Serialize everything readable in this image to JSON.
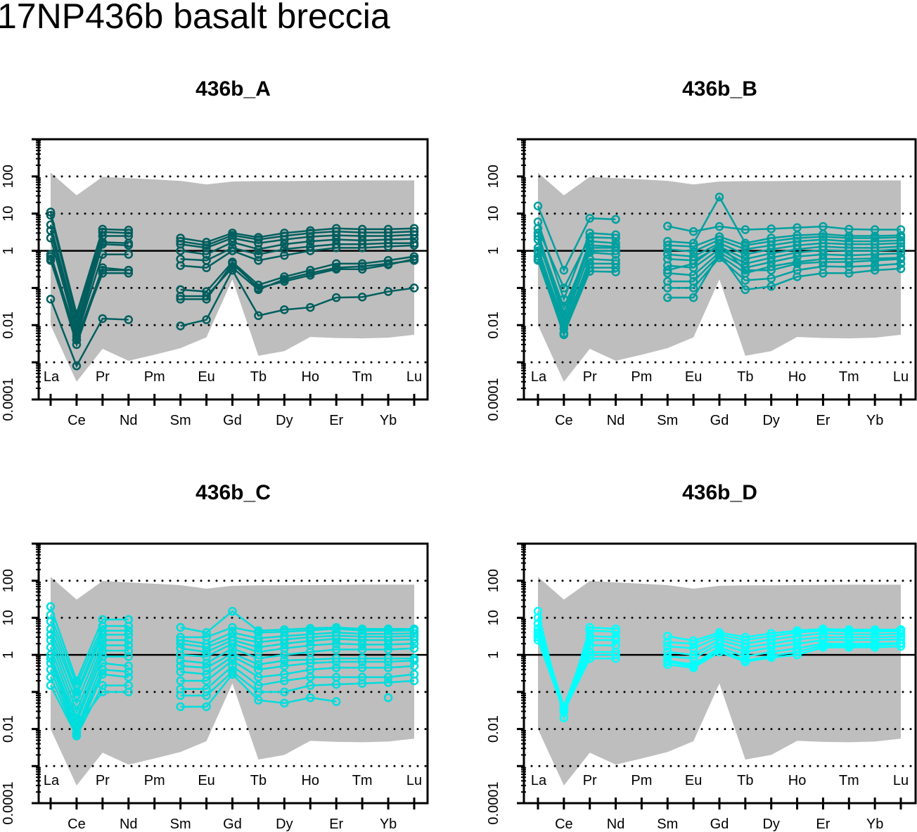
{
  "title": "17NP436b basalt breccia",
  "chart_data": [
    {
      "type": "line",
      "title": "436b_A",
      "color": "#005E5E",
      "categories": [
        "La",
        "Ce",
        "Pr",
        "Nd",
        "Pm",
        "Sm",
        "Eu",
        "Gd",
        "Tb",
        "Dy",
        "Ho",
        "Er",
        "Tm",
        "Yb",
        "Lu"
      ],
      "y_scale": "log",
      "ylim": [
        0.0001,
        1000
      ],
      "y_tick_labels": [
        "100",
        "10",
        "1",
        "0.01",
        "0.0001"
      ],
      "dotted_gridlines": [
        100,
        10,
        0.1,
        0.01,
        0.001
      ],
      "reference_line": 1,
      "envelope": {
        "color": "#BEBEBE",
        "upper": [
          127,
          31,
          98,
          90,
          83,
          76,
          61,
          73,
          75,
          75,
          76,
          77,
          78,
          78,
          78
        ],
        "lower": [
          0.01,
          0.0003,
          0.0023,
          0.0011,
          0.0016,
          0.0024,
          0.0047,
          0.17,
          0.0015,
          0.002,
          0.0048,
          0.0045,
          0.0044,
          0.0046,
          0.0055
        ]
      },
      "series": [
        {
          "values": [
            11,
            0.02,
            3.8,
            3.6,
            null,
            2.2,
            1.7,
            3.0,
            2.3,
            3.0,
            3.5,
            4.0,
            3.8,
            3.8,
            4.0
          ]
        },
        {
          "values": [
            9,
            0.015,
            3.2,
            3.0,
            null,
            1.8,
            1.4,
            2.6,
            2.0,
            2.5,
            3.0,
            3.3,
            3.1,
            3.1,
            3.3
          ]
        },
        {
          "values": [
            5,
            0.01,
            2.5,
            2.5,
            null,
            1.5,
            1.2,
            2.2,
            1.6,
            2.0,
            2.4,
            2.6,
            2.5,
            2.5,
            2.7
          ]
        },
        {
          "values": [
            3.5,
            0.008,
            1.7,
            1.6,
            null,
            1.0,
            0.8,
            1.7,
            1.1,
            1.5,
            1.8,
            2.0,
            1.9,
            2.0,
            2.1
          ]
        },
        {
          "values": [
            2.2,
            0.006,
            1.5,
            1.4,
            null,
            0.6,
            0.55,
            1.2,
            0.8,
            1.1,
            1.3,
            1.5,
            1.5,
            1.6,
            1.6
          ]
        },
        {
          "values": [
            0.8,
            0.005,
            0.8,
            0.8,
            null,
            0.4,
            0.35,
            1.0,
            0.55,
            0.75,
            1.0,
            1.2,
            1.2,
            1.3,
            1.4
          ]
        },
        {
          "values": [
            0.6,
            0.004,
            0.35,
            0.3,
            null,
            0.09,
            0.08,
            0.5,
            0.12,
            0.2,
            0.3,
            0.45,
            0.45,
            0.55,
            0.7
          ]
        },
        {
          "values": [
            0.55,
            0.004,
            0.25,
            0.25,
            null,
            0.06,
            0.06,
            0.35,
            0.09,
            0.17,
            0.25,
            0.35,
            0.38,
            0.45,
            0.55
          ]
        },
        {
          "values": [
            0.7,
            0.003,
            0.3,
            0.3,
            null,
            0.05,
            0.05,
            0.45,
            0.1,
            0.15,
            0.22,
            0.32,
            0.32,
            0.42,
            0.6
          ]
        },
        {
          "values": [
            0.05,
            0.0008,
            0.015,
            0.014,
            null,
            0.0095,
            0.014,
            0.3,
            0.018,
            0.026,
            0.03,
            0.055,
            0.057,
            0.08,
            0.1
          ]
        }
      ]
    },
    {
      "type": "line",
      "title": "436b_B",
      "color": "#00A0A0",
      "categories": [
        "La",
        "Ce",
        "Pr",
        "Nd",
        "Pm",
        "Sm",
        "Eu",
        "Gd",
        "Tb",
        "Dy",
        "Ho",
        "Er",
        "Tm",
        "Yb",
        "Lu"
      ],
      "y_scale": "log",
      "ylim": [
        0.0001,
        1000
      ],
      "y_tick_labels": [
        "100",
        "10",
        "1",
        "0.01",
        "0.0001"
      ],
      "dotted_gridlines": [
        100,
        10,
        0.1,
        0.01,
        0.001
      ],
      "reference_line": 1,
      "envelope": {
        "color": "#BEBEBE",
        "upper": [
          127,
          31,
          98,
          90,
          83,
          76,
          61,
          73,
          75,
          75,
          76,
          77,
          78,
          78,
          78
        ],
        "lower": [
          0.01,
          0.0003,
          0.0023,
          0.0011,
          0.0016,
          0.0024,
          0.0047,
          0.17,
          0.0015,
          0.002,
          0.0048,
          0.0045,
          0.0044,
          0.0046,
          0.0055
        ]
      },
      "series": [
        {
          "values": [
            16,
            0.3,
            7.5,
            7,
            null,
            4.6,
            3.3,
            4.5,
            3.7,
            3.9,
            4.2,
            4.5,
            3.8,
            3.7,
            3.7
          ]
        },
        {
          "values": [
            6,
            0.05,
            3,
            2.7,
            null,
            1.8,
            1.6,
            28,
            1.6,
            2.2,
            2.6,
            2.8,
            2.5,
            2.5,
            2.6
          ]
        },
        {
          "values": [
            4,
            0.1,
            2.3,
            2.2,
            null,
            1.4,
            1.3,
            2.4,
            1.4,
            1.8,
            2.2,
            2.4,
            2.2,
            2.2,
            2.3
          ]
        },
        {
          "values": [
            3,
            0.02,
            1.8,
            1.6,
            null,
            1.1,
            0.95,
            2.0,
            1.1,
            1.4,
            1.8,
            2.0,
            1.8,
            1.8,
            1.9
          ]
        },
        {
          "values": [
            2,
            0.015,
            1.4,
            1.3,
            null,
            0.8,
            0.7,
            1.6,
            0.8,
            1.1,
            1.4,
            1.6,
            1.5,
            1.5,
            1.6
          ]
        },
        {
          "values": [
            1.2,
            0.01,
            1.0,
            1.0,
            null,
            0.6,
            0.55,
            1.3,
            0.6,
            0.85,
            1.1,
            1.3,
            1.2,
            1.2,
            1.3
          ]
        },
        {
          "values": [
            0.9,
            0.008,
            0.6,
            0.55,
            null,
            0.4,
            0.35,
            1.1,
            0.45,
            0.65,
            0.9,
            1.05,
            1.0,
            1.0,
            1.1
          ]
        },
        {
          "values": [
            0.7,
            0.006,
            0.45,
            0.45,
            null,
            0.25,
            0.22,
            0.9,
            0.35,
            0.5,
            0.7,
            0.8,
            0.75,
            0.8,
            0.85
          ]
        },
        {
          "values": [
            0.6,
            0.0055,
            0.35,
            0.35,
            null,
            0.15,
            0.15,
            0.75,
            0.25,
            0.38,
            0.5,
            0.6,
            0.6,
            0.62,
            0.65
          ]
        },
        {
          "values": [
            0.55,
            0.006,
            0.28,
            0.27,
            null,
            0.1,
            0.1,
            0.65,
            0.16,
            0.18,
            0.3,
            0.38,
            0.37,
            0.4,
            0.45
          ]
        },
        {
          "values": [
            1.0,
            0.012,
            0.9,
            0.8,
            null,
            0.055,
            0.055,
            0.85,
            0.09,
            0.11,
            0.2,
            0.25,
            0.25,
            0.3,
            0.33
          ]
        },
        {
          "values": [
            2.5,
            0.03,
            1.2,
            1.2,
            null,
            0.3,
            0.45,
            1.5,
            0.3,
            0.3,
            0.45,
            0.5,
            0.5,
            0.55,
            0.6
          ]
        }
      ]
    },
    {
      "type": "line",
      "title": "436b_C",
      "color": "#00DDDD",
      "categories": [
        "La",
        "Ce",
        "Pr",
        "Nd",
        "Pm",
        "Sm",
        "Eu",
        "Gd",
        "Tb",
        "Dy",
        "Ho",
        "Er",
        "Tm",
        "Yb",
        "Lu"
      ],
      "y_scale": "log",
      "ylim": [
        0.0001,
        1000
      ],
      "y_tick_labels": [
        "100",
        "10",
        "1",
        "0.01",
        "0.0001"
      ],
      "dotted_gridlines": [
        100,
        10,
        0.1,
        0.01,
        0.001
      ],
      "reference_line": 1,
      "envelope": {
        "color": "#BEBEBE",
        "upper": [
          127,
          31,
          98,
          90,
          83,
          76,
          61,
          73,
          75,
          75,
          76,
          77,
          78,
          78,
          78
        ],
        "lower": [
          0.01,
          0.0003,
          0.0023,
          0.0011,
          0.0016,
          0.0024,
          0.0047,
          0.17,
          0.0015,
          0.002,
          0.0048,
          0.0045,
          0.0044,
          0.0046,
          0.0055
        ]
      },
      "series": [
        {
          "values": [
            20,
            0.2,
            9,
            9,
            null,
            5.5,
            4,
            15,
            4.5,
            4.8,
            5.2,
            5.5,
            5,
            5,
            5
          ]
        },
        {
          "values": [
            12,
            0.15,
            6,
            6,
            null,
            3,
            3,
            5.5,
            4,
            4.2,
            4.6,
            5,
            4.5,
            4.5,
            4.5
          ]
        },
        {
          "values": [
            8,
            0.1,
            4.5,
            4.5,
            null,
            2.5,
            2,
            4,
            2.8,
            3.2,
            3.6,
            4,
            3.7,
            3.7,
            3.8
          ]
        },
        {
          "values": [
            5,
            0.08,
            3.5,
            3.5,
            null,
            2,
            1.6,
            3,
            2.2,
            2.6,
            3,
            3.3,
            3.1,
            3.1,
            3.2
          ]
        },
        {
          "values": [
            3.5,
            0.05,
            2.5,
            2.5,
            null,
            1.5,
            1.2,
            2.5,
            1.6,
            2,
            2.4,
            2.7,
            2.5,
            2.5,
            2.6
          ]
        },
        {
          "values": [
            2.5,
            0.03,
            1.8,
            1.8,
            null,
            1,
            0.9,
            2,
            1.2,
            1.5,
            1.8,
            2,
            1.9,
            1.9,
            2
          ]
        },
        {
          "values": [
            1.6,
            0.02,
            1.3,
            1.3,
            null,
            0.7,
            0.6,
            1.5,
            0.8,
            1,
            1.2,
            1.4,
            1.4,
            1.4,
            1.5
          ]
        },
        {
          "values": [
            1,
            0.015,
            0.9,
            0.9,
            null,
            0.5,
            0.45,
            1.1,
            0.55,
            0.7,
            0.75,
            0.8,
            0.8,
            0.8,
            0.8
          ]
        },
        {
          "values": [
            0.6,
            0.01,
            0.6,
            0.5,
            null,
            0.35,
            0.3,
            0.9,
            0.4,
            0.5,
            0.6,
            0.65,
            0.65,
            0.65,
            0.7
          ]
        },
        {
          "values": [
            0.4,
            0.008,
            0.4,
            0.35,
            null,
            0.2,
            0.2,
            0.7,
            0.25,
            0.3,
            0.4,
            0.45,
            0.45,
            0.45,
            0.5
          ]
        },
        {
          "values": [
            0.25,
            0.007,
            0.3,
            0.25,
            null,
            0.12,
            0.12,
            0.5,
            0.15,
            0.2,
            0.25,
            0.25,
            0.25,
            0.25,
            0.3
          ]
        },
        {
          "values": [
            0.15,
            0.0065,
            0.15,
            0.15,
            null,
            0.08,
            0.08,
            0.35,
            0.1,
            0.1,
            0.15,
            0.16,
            0.17,
            0.18,
            0.2
          ]
        },
        {
          "values": [
            0.8,
            0.012,
            0.1,
            0.1,
            null,
            0.04,
            0.04,
            0.3,
            0.06,
            0.05,
            0.07,
            0.055,
            null,
            null,
            null
          ]
        },
        {
          "values": [
            null,
            null,
            null,
            null,
            null,
            null,
            null,
            null,
            null,
            null,
            null,
            null,
            null,
            0.07,
            null
          ]
        }
      ]
    },
    {
      "type": "line",
      "title": "436b_D",
      "color": "#00FFFF",
      "categories": [
        "La",
        "Ce",
        "Pr",
        "Nd",
        "Pm",
        "Sm",
        "Eu",
        "Gd",
        "Tb",
        "Dy",
        "Ho",
        "Er",
        "Tm",
        "Yb",
        "Lu"
      ],
      "y_scale": "log",
      "ylim": [
        0.0001,
        1000
      ],
      "y_tick_labels": [
        "100",
        "10",
        "1",
        "0.01",
        "0.0001"
      ],
      "dotted_gridlines": [
        100,
        10,
        0.1,
        0.01,
        0.001
      ],
      "reference_line": 1,
      "envelope": {
        "color": "#BEBEBE",
        "upper": [
          127,
          31,
          98,
          90,
          83,
          76,
          61,
          73,
          75,
          75,
          76,
          77,
          78,
          78,
          78
        ],
        "lower": [
          0.01,
          0.0003,
          0.0023,
          0.0011,
          0.0016,
          0.0024,
          0.0047,
          0.17,
          0.0015,
          0.002,
          0.0048,
          0.0045,
          0.0044,
          0.0046,
          0.0055
        ]
      },
      "series": [
        {
          "values": [
            15,
            0.02,
            5.5,
            5,
            null,
            3.2,
            2.4,
            4,
            3,
            3.8,
            4.5,
            5,
            4.8,
            4.8,
            4.8
          ]
        },
        {
          "values": [
            10,
            0.03,
            4.5,
            4.2,
            null,
            2.2,
            2,
            3.5,
            2.5,
            3.2,
            4,
            4.5,
            4.3,
            4.3,
            4.3
          ]
        },
        {
          "values": [
            7,
            0.04,
            3.2,
            3,
            null,
            1.7,
            1.5,
            3,
            2,
            2.6,
            3.2,
            3.8,
            3.6,
            3.6,
            3.7
          ]
        },
        {
          "values": [
            5,
            0.035,
            2.5,
            2.5,
            null,
            1.2,
            1,
            2.5,
            1.6,
            2,
            2.6,
            3,
            3,
            3,
            3.1
          ]
        },
        {
          "values": [
            3.5,
            0.03,
            1.8,
            1.8,
            null,
            0.9,
            0.8,
            2,
            1.2,
            1.6,
            2,
            2.5,
            2.5,
            2.5,
            2.6
          ]
        },
        {
          "values": [
            3,
            0.03,
            1.2,
            1.2,
            null,
            0.7,
            0.55,
            1.6,
            0.9,
            1.2,
            1.5,
            2,
            2,
            2,
            2.1
          ]
        },
        {
          "values": [
            2.5,
            0.03,
            0.8,
            0.8,
            null,
            0.55,
            0.45,
            1.2,
            0.65,
            0.85,
            1,
            1.6,
            1.6,
            1.6,
            1.7
          ]
        },
        {
          "values": [
            4,
            0.03,
            1,
            1,
            null,
            0.65,
            0.5,
            1.4,
            0.7,
            0.95,
            1.2,
            1.8,
            1.8,
            1.8,
            2
          ]
        }
      ]
    }
  ]
}
